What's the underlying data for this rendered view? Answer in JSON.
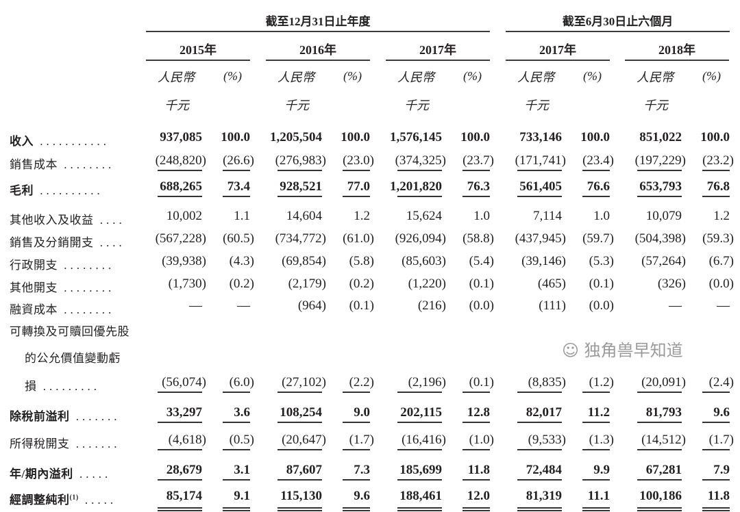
{
  "header": {
    "annual_group": "截至12月31日止年度",
    "interim_group": "截至6月30日止六個月",
    "periods": [
      "2015年",
      "2016年",
      "2017年",
      "2017年",
      "2018年"
    ],
    "unit_amount_line1": "人民幣",
    "unit_amount_line2": "千元",
    "unit_pct": "(%)"
  },
  "rows": [
    {
      "label": "收入",
      "bold": true,
      "values": [
        "937,085",
        "100.0",
        "1,205,504",
        "100.0",
        "1,576,145",
        "100.0",
        "733,146",
        "100.0",
        "851,022",
        "100.0"
      ]
    },
    {
      "label": "銷售成本",
      "bold": false,
      "values": [
        "(248,820)",
        "(26.6)",
        "(276,983)",
        "(23.0)",
        "(374,325)",
        "(23.7)",
        "(171,741)",
        "(23.4)",
        "(197,229)",
        "(23.2)"
      ]
    },
    {
      "label": "毛利",
      "bold": true,
      "values": [
        "688,265",
        "73.4",
        "928,521",
        "77.0",
        "1,201,820",
        "76.3",
        "561,405",
        "76.6",
        "653,793",
        "76.8"
      ]
    },
    {
      "label": "其他收入及收益",
      "bold": false,
      "values": [
        "10,002",
        "1.1",
        "14,604",
        "1.2",
        "15,624",
        "1.0",
        "7,114",
        "1.0",
        "10,079",
        "1.2"
      ]
    },
    {
      "label": "銷售及分銷開支",
      "bold": false,
      "values": [
        "(567,228)",
        "(60.5)",
        "(734,772)",
        "(61.0)",
        "(926,094)",
        "(58.8)",
        "(437,945)",
        "(59.7)",
        "(504,398)",
        "(59.3)"
      ]
    },
    {
      "label": "行政開支",
      "bold": false,
      "values": [
        "(39,938)",
        "(4.3)",
        "(69,854)",
        "(5.8)",
        "(85,603)",
        "(5.4)",
        "(39,146)",
        "(5.3)",
        "(57,264)",
        "(6.7)"
      ]
    },
    {
      "label": "其他開支",
      "bold": false,
      "values": [
        "(1,730)",
        "(0.2)",
        "(2,179)",
        "(0.2)",
        "(1,220)",
        "(0.1)",
        "(465)",
        "(0.1)",
        "(326)",
        "(0.0)"
      ]
    },
    {
      "label": "融資成本",
      "bold": false,
      "values": [
        "—",
        "—",
        "(964)",
        "(0.1)",
        "(216)",
        "(0.0)",
        "(111)",
        "(0.0)",
        "—",
        "—"
      ]
    },
    {
      "label": "可轉換及可贖回優先股",
      "bold": false,
      "values": []
    },
    {
      "label": "的公允價值變動虧",
      "bold": false,
      "values": []
    },
    {
      "label": "損",
      "bold": false,
      "values": [
        "(56,074)",
        "(6.0)",
        "(27,102)",
        "(2.2)",
        "(2,196)",
        "(0.1)",
        "(8,835)",
        "(1.2)",
        "(20,091)",
        "(2.4)"
      ]
    },
    {
      "label": "除稅前溢利",
      "bold": true,
      "values": [
        "33,297",
        "3.6",
        "108,254",
        "9.0",
        "202,115",
        "12.8",
        "82,017",
        "11.2",
        "81,793",
        "9.6"
      ]
    },
    {
      "label": "所得稅開支",
      "bold": false,
      "values": [
        "(4,618)",
        "(0.5)",
        "(20,647)",
        "(1.7)",
        "(16,416)",
        "(1.0)",
        "(9,533)",
        "(1.3)",
        "(14,512)",
        "(1.7)"
      ]
    },
    {
      "label": "年/期內溢利",
      "bold": true,
      "values": [
        "28,679",
        "3.1",
        "87,607",
        "7.3",
        "185,699",
        "11.8",
        "72,484",
        "9.9",
        "67,281",
        "7.9"
      ]
    },
    {
      "label": "經調整純利",
      "label_sup": "(1)",
      "bold": true,
      "values": [
        "85,174",
        "9.1",
        "115,130",
        "9.6",
        "188,461",
        "12.0",
        "81,319",
        "11.1",
        "100,186",
        "11.8"
      ]
    }
  ],
  "watermark": "独角兽早知道"
}
